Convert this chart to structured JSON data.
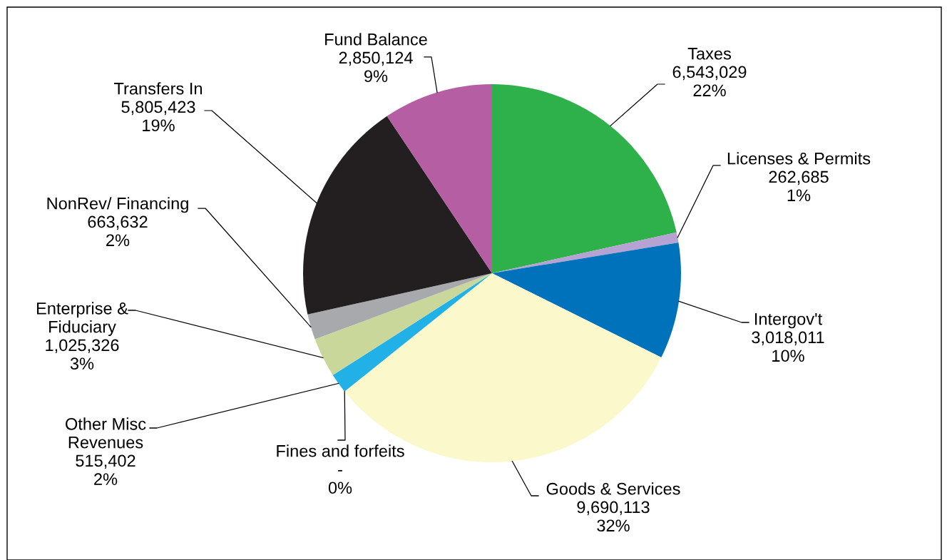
{
  "chart_data": {
    "type": "pie",
    "categories": [
      "Taxes",
      "Licenses & Permits",
      "Intergov't",
      "Goods & Services",
      "Fines and forfeits",
      "Other Misc\nRevenues",
      "Enterprise &\nFiduciary",
      "NonRev/ Financing",
      "Transfers In",
      "Fund Balance"
    ],
    "values": [
      6543029,
      262685,
      3018011,
      9690113,
      0,
      515402,
      1025326,
      663632,
      5805423,
      2850124
    ],
    "colors": [
      "#2eb04b",
      "#b7a3d3",
      "#0072bc",
      "#fbf8cc",
      "#00a99d",
      "#22b1e6",
      "#c9d89a",
      "#a7a9ac",
      "#231f20",
      "#b55ea4"
    ],
    "value_labels": [
      "6,543,029\n22%",
      "262,685\n1%",
      "3,018,011\n10%",
      "9,690,113\n32%",
      "-\n0%",
      "515,402\n2%",
      "1,025,326\n3%",
      "663,632\n2%",
      "5,805,423\n19%",
      "2,850,124\n9%"
    ]
  }
}
